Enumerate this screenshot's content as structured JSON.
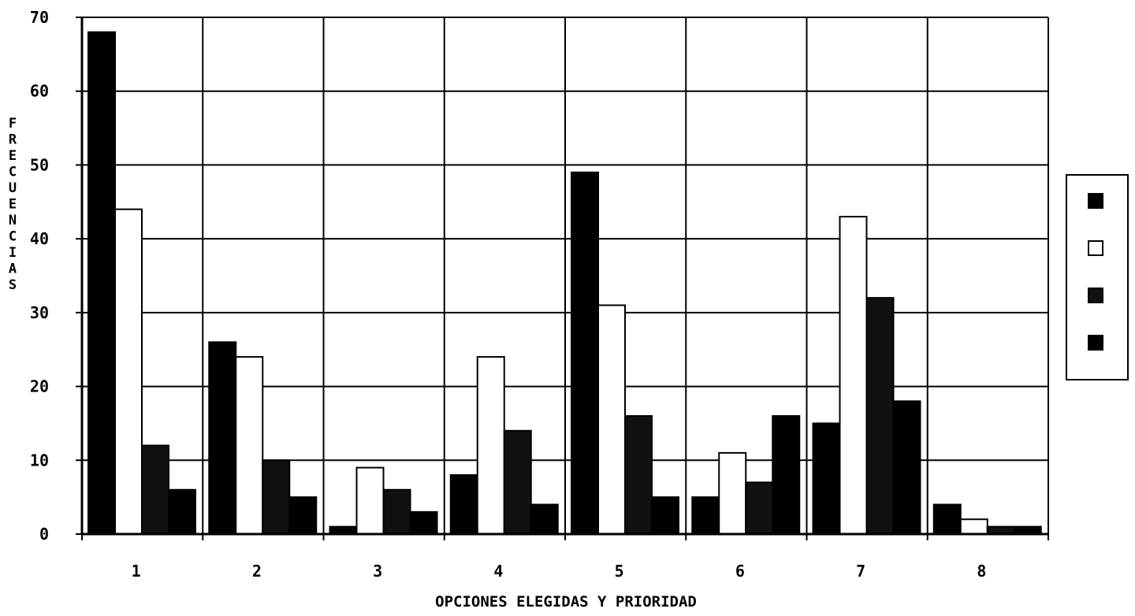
{
  "chart_data": {
    "type": "bar",
    "title": "",
    "xlabel": "OPCIONES ELEGIDAS Y PRIORIDAD",
    "ylabel": "FRECUENCIAS",
    "categories": [
      "1",
      "2",
      "3",
      "4",
      "5",
      "6",
      "7",
      "8"
    ],
    "ylim": [
      0,
      70
    ],
    "yticks": [
      "0",
      "10",
      "20",
      "30",
      "40",
      "50",
      "60",
      "70"
    ],
    "grid": true,
    "legend": "right",
    "series": [
      {
        "values": [
          68,
          26,
          1,
          8,
          49,
          5,
          15,
          4
        ],
        "color": "#000000"
      },
      {
        "values": [
          44,
          24,
          9,
          24,
          31,
          11,
          43,
          2
        ],
        "color": "#ffffff"
      },
      {
        "values": [
          12,
          10,
          6,
          14,
          16,
          7,
          32,
          1
        ],
        "color": "#111111"
      },
      {
        "values": [
          6,
          5,
          3,
          4,
          5,
          16,
          18,
          1
        ],
        "color": "#000000"
      }
    ]
  }
}
